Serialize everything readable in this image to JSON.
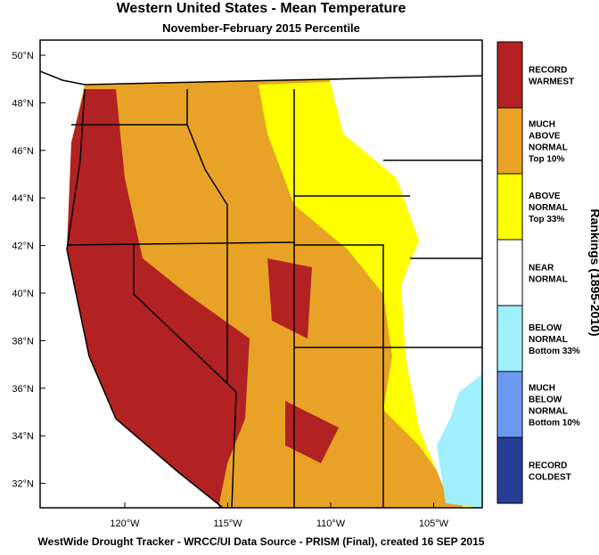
{
  "header": {
    "title": "Western United States - Mean Temperature",
    "subtitle": "November-February 2015 Percentile"
  },
  "map": {
    "lat_labels": [
      "50°N",
      "48°N",
      "46°N",
      "44°N",
      "42°N",
      "40°N",
      "38°N",
      "36°N",
      "34°N",
      "32°N"
    ],
    "lon_labels": [
      "120°W",
      "115°W",
      "110°W",
      "105°W"
    ]
  },
  "legend": {
    "title": "Rankings (1895-2010)",
    "items": [
      {
        "color": "#b22222",
        "lines": [
          "RECORD",
          "WARMEST"
        ]
      },
      {
        "color": "#e8a327",
        "lines": [
          "MUCH",
          "ABOVE",
          "NORMAL",
          "Top 10%"
        ]
      },
      {
        "color": "#ffff00",
        "lines": [
          "ABOVE",
          "NORMAL",
          "Top 33%"
        ]
      },
      {
        "color": "#ffffff",
        "lines": [
          "NEAR",
          "NORMAL"
        ]
      },
      {
        "color": "#a0f0ff",
        "lines": [
          "BELOW",
          "NORMAL",
          "Bottom 33%"
        ]
      },
      {
        "color": "#6a9af0",
        "lines": [
          "MUCH",
          "BELOW",
          "NORMAL",
          "Bottom 10%"
        ]
      },
      {
        "color": "#263f94",
        "lines": [
          "RECORD",
          "COLDEST"
        ]
      }
    ]
  },
  "footer": {
    "text": "WestWide Drought Tracker - WRCC/UI  Data Source - PRISM (Final), created 16 SEP 2015"
  }
}
